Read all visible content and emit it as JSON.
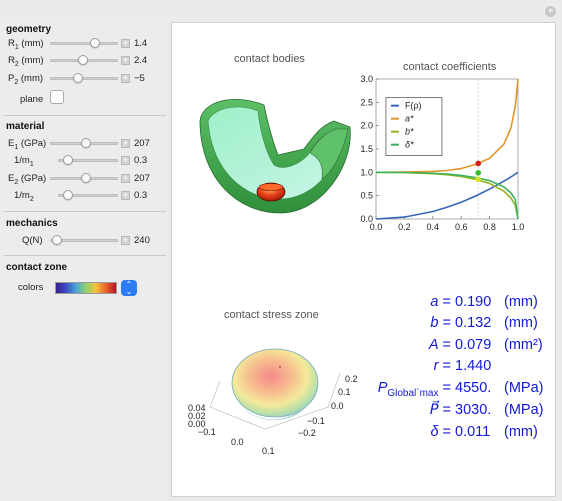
{
  "panel": {
    "geometry_header": "geometry",
    "material_header": "material",
    "mechanics_header": "mechanics",
    "contact_zone_header": "contact zone",
    "r1": {
      "label": "R",
      "sub": "1",
      "unit": " (mm)",
      "value": "1.4"
    },
    "r2": {
      "label": "R",
      "sub": "2",
      "unit": " (mm)",
      "value": "2.4"
    },
    "p2": {
      "label": "P",
      "sub": "2",
      "unit": " (mm)",
      "value": "−5"
    },
    "plane_label": "plane",
    "e1": {
      "label": "E",
      "sub": "1",
      "unit": " (GPa)",
      "value": "207"
    },
    "m1": {
      "label": "1/m",
      "sub": "1",
      "value": "0.3"
    },
    "e2": {
      "label": "E",
      "sub": "2",
      "unit": " (GPa)",
      "value": "207"
    },
    "m2": {
      "label": "1/m",
      "sub": "2",
      "value": "0.3"
    },
    "q": {
      "label": "Q(N)",
      "value": "240"
    },
    "colors_label": "colors"
  },
  "plots": {
    "bodies_title": "contact bodies",
    "coeff_title": "contact coefficients",
    "stress_title": "contact stress zone"
  },
  "chart_data": {
    "type": "line",
    "x_ticks": [
      "0.0",
      "0.2",
      "0.4",
      "0.6",
      "0.8",
      "1.0"
    ],
    "y_ticks": [
      "0.0",
      "0.5",
      "1.0",
      "1.5",
      "2.0",
      "2.5",
      "3.0"
    ],
    "xlim": [
      0,
      1
    ],
    "ylim": [
      0,
      3
    ],
    "marker_x": 0.72,
    "legend": [
      "F(ρ)",
      "a*",
      "b*",
      "δ*"
    ],
    "legend_placement": "top-left",
    "series": [
      {
        "name": "F(ρ)",
        "color": "#3a66b8",
        "x": [
          0,
          0.2,
          0.4,
          0.5,
          0.6,
          0.7,
          0.8,
          0.9,
          0.95,
          1.0
        ],
        "y": [
          0,
          0.04,
          0.16,
          0.25,
          0.36,
          0.49,
          0.64,
          0.81,
          0.9,
          1.0
        ]
      },
      {
        "name": "a*",
        "color": "#e0952a",
        "x": [
          0,
          0.2,
          0.4,
          0.5,
          0.6,
          0.7,
          0.8,
          0.9,
          0.95,
          0.98,
          0.99,
          1.0
        ],
        "y": [
          1.0,
          1.005,
          1.02,
          1.04,
          1.08,
          1.17,
          1.3,
          1.6,
          1.95,
          2.4,
          2.7,
          3.0
        ]
      },
      {
        "name": "b*",
        "color": "#96b31e",
        "x": [
          0,
          0.2,
          0.4,
          0.5,
          0.6,
          0.7,
          0.8,
          0.9,
          0.95,
          0.98,
          1.0
        ],
        "y": [
          1.0,
          0.995,
          0.97,
          0.95,
          0.91,
          0.85,
          0.76,
          0.6,
          0.45,
          0.3,
          0.0
        ]
      },
      {
        "name": "δ*",
        "color": "#3db35a",
        "x": [
          0,
          0.2,
          0.4,
          0.5,
          0.6,
          0.7,
          0.8,
          0.9,
          0.95,
          0.98,
          1.0
        ],
        "y": [
          1.0,
          0.996,
          0.98,
          0.965,
          0.935,
          0.89,
          0.82,
          0.69,
          0.56,
          0.42,
          0.0
        ]
      }
    ],
    "points": [
      {
        "x": 0.72,
        "y": 1.19,
        "color": "#d81b1b"
      },
      {
        "x": 0.72,
        "y": 0.99,
        "color": "#2fbf2f"
      },
      {
        "x": 0.72,
        "y": 0.85,
        "color": "#d8e020"
      }
    ]
  },
  "stress_axes": {
    "left_ticks": [
      "0.04",
      "0.02",
      "0.00"
    ],
    "x_ticks": [
      "−0.1",
      "0.0",
      "0.1"
    ],
    "y_ticks": [
      "0.2",
      "0.1",
      "0.0",
      "−0.1",
      "−0.2"
    ]
  },
  "results": [
    {
      "key": "a",
      "eq": " =",
      "num": "0.190",
      "unit": "(mm)"
    },
    {
      "key": "b",
      "eq": " =",
      "num": "0.132",
      "unit": "(mm)"
    },
    {
      "key": "A",
      "eq": " =",
      "num": "0.079",
      "unit": "(mm²)"
    },
    {
      "key": "r",
      "eq": " =",
      "num": "1.440",
      "unit": ""
    },
    {
      "key": "P",
      "sub": "Global`max",
      "eq": " =",
      "num": "4550.",
      "unit": "(MPa)"
    },
    {
      "key": "P⃗",
      "eq": " =",
      "num": "3030.",
      "unit": "(MPa)"
    },
    {
      "key": "δ",
      "eq": " =",
      "num": "0.011",
      "unit": "(mm)"
    }
  ]
}
